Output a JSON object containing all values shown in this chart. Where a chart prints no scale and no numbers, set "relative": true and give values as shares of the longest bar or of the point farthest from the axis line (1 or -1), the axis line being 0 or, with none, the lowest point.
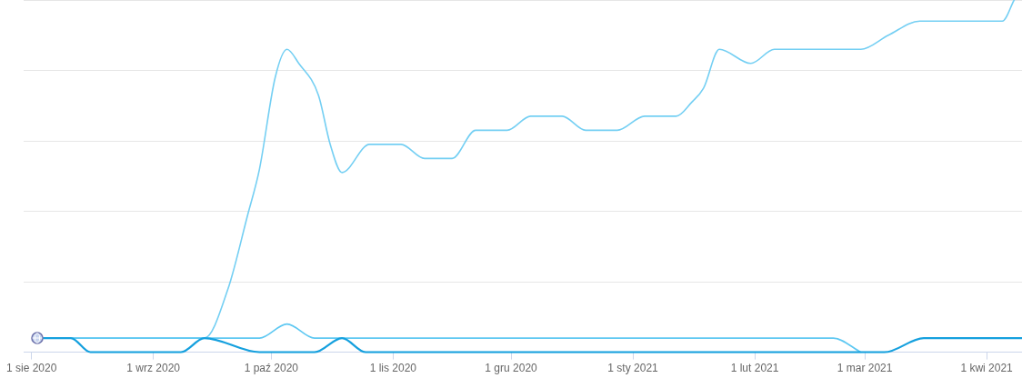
{
  "chart_data": {
    "type": "line",
    "relative": true,
    "grid": "y",
    "xlim": [
      "2020-07-30",
      "2021-04-10"
    ],
    "xticks": [
      {
        "value": "2020-08-01",
        "label": "1 sie 2020"
      },
      {
        "value": "2020-09-01",
        "label": "1 wrz 2020"
      },
      {
        "value": "2020-10-01",
        "label": "1 paź 2020"
      },
      {
        "value": "2020-11-01",
        "label": "1 lis 2020"
      },
      {
        "value": "2020-12-01",
        "label": "1 gru 2020"
      },
      {
        "value": "2021-01-01",
        "label": "1 sty 2021"
      },
      {
        "value": "2021-02-01",
        "label": "1 lut 2021"
      },
      {
        "value": "2021-03-01",
        "label": "1 mar 2021"
      },
      {
        "value": "2021-04-01",
        "label": "1 kwi 2021"
      }
    ],
    "series": [
      {
        "color": "#74cff3",
        "x": [
          "2020-08-04",
          "2020-09-14",
          "2020-09-20",
          "2020-09-25",
          "2020-09-28",
          "2020-10-02",
          "2020-10-05",
          "2020-10-08",
          "2020-10-13",
          "2020-10-16",
          "2020-10-19",
          "2020-10-26",
          "2020-11-03",
          "2020-11-09",
          "2020-11-16",
          "2020-11-22",
          "2020-11-30",
          "2020-12-06",
          "2020-12-14",
          "2020-12-20",
          "2020-12-28",
          "2021-01-04",
          "2021-01-12",
          "2021-01-16",
          "2021-01-19",
          "2021-01-23",
          "2021-01-31",
          "2021-02-06",
          "2021-02-28",
          "2021-03-07",
          "2021-03-15",
          "2021-04-05",
          "2021-04-08"
        ],
        "values": [
          0.04,
          0.04,
          0.18,
          0.39,
          0.52,
          0.78,
          0.86,
          0.82,
          0.73,
          0.59,
          0.51,
          0.59,
          0.59,
          0.55,
          0.55,
          0.63,
          0.63,
          0.67,
          0.67,
          0.63,
          0.63,
          0.67,
          0.67,
          0.71,
          0.75,
          0.86,
          0.82,
          0.86,
          0.86,
          0.9,
          0.94,
          0.94,
          1
        ]
      },
      {
        "color": "#5ec8f2",
        "x": [
          "2020-08-04",
          "2020-09-28",
          "2020-10-05",
          "2020-10-12",
          "2021-02-21",
          "2021-02-28"
        ],
        "values": [
          0.04,
          0.04,
          0.08,
          0.04,
          0.04,
          0
        ]
      },
      {
        "color": "#15a0de",
        "x": [
          "2020-08-04",
          "2020-08-11",
          "2020-08-16",
          "2020-09-08",
          "2020-09-14",
          "2020-09-28",
          "2020-10-12",
          "2020-10-19",
          "2020-10-25",
          "2021-03-06",
          "2021-03-16",
          "2021-04-10"
        ],
        "values": [
          0.04,
          0.04,
          0,
          0,
          0.04,
          0,
          0,
          0.04,
          0,
          0,
          0.04,
          0.04
        ]
      }
    ]
  }
}
